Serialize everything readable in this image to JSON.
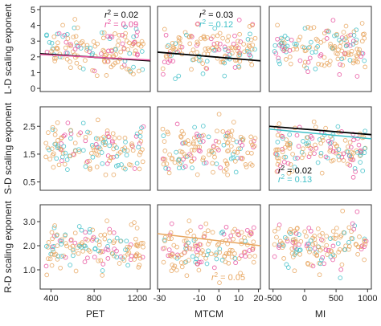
{
  "chart_data": {
    "type": "scatter",
    "colors": {
      "orange": "#e8a65f",
      "pink": "#e8509e",
      "cyan": "#3fc0c8",
      "black": "#000000"
    },
    "columns": [
      {
        "xlabel": "PET",
        "xlim": [
          300,
          1320
        ],
        "ticks": [
          "400",
          "800",
          "1200"
        ],
        "tick_values": [
          400,
          800,
          1200
        ]
      },
      {
        "xlabel": "MTCM",
        "xlim": [
          -31,
          21
        ],
        "ticks": [
          "-30",
          "-10",
          "0",
          "10",
          "20"
        ],
        "tick_values": [
          -30,
          -10,
          0,
          10,
          20
        ]
      },
      {
        "xlabel": "MI",
        "xlim": [
          -560,
          1060
        ],
        "ticks": [
          "-500",
          "0",
          "500",
          "1000"
        ],
        "tick_values": [
          -500,
          0,
          500,
          1000
        ]
      }
    ],
    "rows": [
      {
        "ylabel": "L-D scaling exponent",
        "ylim": [
          -0.2,
          5.2
        ],
        "ticks": [
          "0",
          "1",
          "2",
          "3",
          "4",
          "5"
        ],
        "tick_values": [
          0,
          1,
          2,
          3,
          4,
          5
        ]
      },
      {
        "ylabel": "S-D scaling exponent",
        "ylim": [
          0.2,
          3.2
        ],
        "ticks": [
          "0.5",
          "1.5",
          "2.5"
        ],
        "tick_values": [
          0.5,
          1.5,
          2.5
        ]
      },
      {
        "ylabel": "R-D scaling exponent",
        "ylim": [
          0.2,
          3.7
        ],
        "ticks": [
          "1.0",
          "2.0",
          "3.0"
        ],
        "tick_values": [
          1.0,
          2.0,
          3.0
        ]
      }
    ],
    "panels": [
      {
        "row": 0,
        "col": 0,
        "fits": [
          {
            "color": "black",
            "x": [
              300,
              1320
            ],
            "y": [
              2.2,
              1.75
            ]
          },
          {
            "color": "pink",
            "x": [
              300,
              1320
            ],
            "y": [
              2.15,
              1.8
            ]
          }
        ],
        "annotations": [
          {
            "prefix": "r",
            "sup": "2",
            "text": " = 0.02",
            "color": "black"
          },
          {
            "prefix": "r",
            "sup": "2",
            "text": " = 0.09",
            "color": "pink"
          }
        ]
      },
      {
        "row": 0,
        "col": 1,
        "fits": [
          {
            "color": "black",
            "x": [
              -31,
              21
            ],
            "y": [
              2.3,
              1.75
            ]
          }
        ],
        "annotations": [
          {
            "prefix": "r",
            "sup": "2",
            "text": " = 0.03",
            "color": "black"
          },
          {
            "prefix": "r",
            "sup": "2",
            "text": " = 0.12",
            "color": "cyan"
          }
        ]
      },
      {
        "row": 0,
        "col": 2,
        "fits": [],
        "annotations": []
      },
      {
        "row": 1,
        "col": 0,
        "fits": [],
        "annotations": []
      },
      {
        "row": 1,
        "col": 1,
        "fits": [],
        "annotations": []
      },
      {
        "row": 1,
        "col": 2,
        "fits": [
          {
            "color": "black",
            "x": [
              -560,
              1060
            ],
            "y": [
              2.5,
              2.2
            ]
          },
          {
            "color": "cyan",
            "x": [
              -560,
              1060
            ],
            "y": [
              2.4,
              2.05
            ]
          }
        ],
        "annotations": [
          {
            "prefix": "r",
            "sup": "2",
            "text": " = 0.02",
            "color": "black"
          },
          {
            "prefix": "r",
            "sup": "2",
            "text": " = 0.13",
            "color": "cyan"
          }
        ]
      },
      {
        "row": 2,
        "col": 0,
        "fits": [],
        "annotations": []
      },
      {
        "row": 2,
        "col": 1,
        "fits": [
          {
            "color": "orange",
            "x": [
              -31,
              21
            ],
            "y": [
              2.5,
              2.0
            ]
          }
        ],
        "annotations": [
          {
            "prefix": "r",
            "sup": "2",
            "text": " = 0.05",
            "color": "orange"
          }
        ]
      },
      {
        "row": 2,
        "col": 2,
        "fits": [],
        "annotations": []
      }
    ]
  }
}
